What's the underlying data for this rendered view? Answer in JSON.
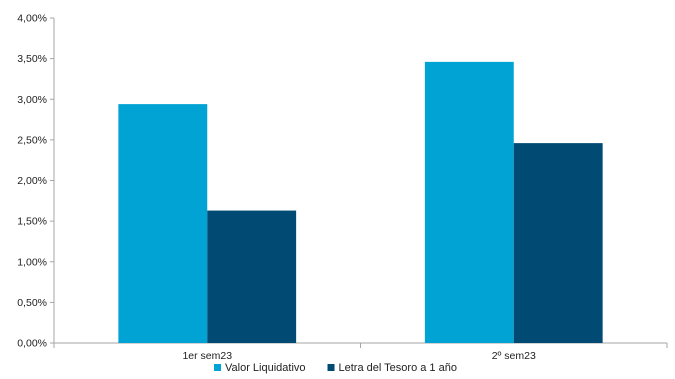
{
  "chart_data": {
    "type": "bar",
    "categories": [
      "1er sem23",
      "2º sem23"
    ],
    "series": [
      {
        "name": "Valor Liquidativo",
        "values": [
          2.94,
          3.46
        ],
        "color": "#00A3D4"
      },
      {
        "name": "Letra del Tesoro a 1 año",
        "values": [
          1.63,
          2.46
        ],
        "color": "#004A74"
      }
    ],
    "ylim": [
      0,
      4
    ],
    "yticks": [
      0,
      0.5,
      1,
      1.5,
      2,
      2.5,
      3,
      3.5,
      4
    ],
    "ytick_labels": [
      "0,00%",
      "0,50%",
      "1,00%",
      "1,50%",
      "2,00%",
      "2,50%",
      "3,00%",
      "3,50%",
      "4,00%"
    ],
    "grid": false,
    "legend_position": "bottom",
    "axis_color": "#A6A6A6"
  }
}
